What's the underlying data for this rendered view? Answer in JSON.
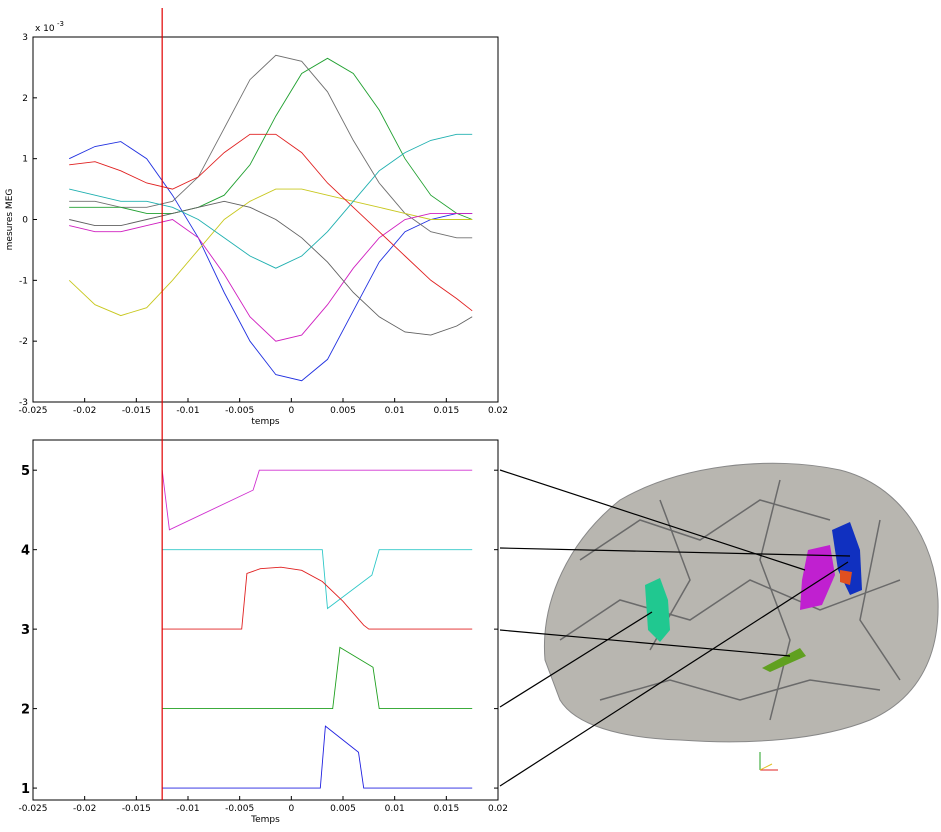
{
  "chart_data": [
    {
      "type": "line",
      "ylabel": "mesures MEG",
      "xlabel": "temps",
      "y_multiplier": "x 10",
      "y_multiplier_exp": "-3",
      "xlim": [
        -0.025,
        0.02
      ],
      "xticks": [
        -0.025,
        -0.02,
        -0.015,
        -0.01,
        -0.005,
        0,
        0.005,
        0.01,
        0.015,
        0.02
      ],
      "ylim": [
        -3,
        3
      ],
      "yticks": [
        -3,
        -2,
        -1,
        0,
        1,
        2,
        3
      ],
      "cursor_x": -0.0125,
      "x": [
        -0.0215,
        -0.019,
        -0.0165,
        -0.014,
        -0.0115,
        -0.009,
        -0.0065,
        -0.004,
        -0.0015,
        0.001,
        0.0035,
        0.006,
        0.0085,
        0.011,
        0.0135,
        0.016,
        0.0175
      ],
      "series": [
        {
          "color": "#2030e0",
          "values": [
            1.0,
            1.2,
            1.28,
            1.0,
            0.4,
            -0.3,
            -1.2,
            -2.0,
            -2.55,
            -2.65,
            -2.3,
            -1.5,
            -0.7,
            -0.2,
            0.0,
            0.1,
            0.1
          ]
        },
        {
          "color": "#707070",
          "values": [
            0.3,
            0.3,
            0.2,
            0.2,
            0.3,
            0.7,
            1.5,
            2.3,
            2.7,
            2.6,
            2.1,
            1.3,
            0.6,
            0.1,
            -0.2,
            -0.3,
            -0.3
          ]
        },
        {
          "color": "#20a030",
          "values": [
            0.2,
            0.2,
            0.2,
            0.1,
            0.1,
            0.2,
            0.4,
            0.9,
            1.7,
            2.4,
            2.65,
            2.4,
            1.8,
            1.0,
            0.4,
            0.1,
            0.0
          ]
        },
        {
          "color": "#c8c820",
          "values": [
            -1.0,
            -1.4,
            -1.58,
            -1.45,
            -1.0,
            -0.5,
            0.0,
            0.3,
            0.5,
            0.5,
            0.4,
            0.3,
            0.2,
            0.1,
            0.0,
            0.0,
            0.0
          ]
        },
        {
          "color": "#d020c0",
          "values": [
            -0.1,
            -0.2,
            -0.2,
            -0.1,
            0.0,
            -0.3,
            -0.9,
            -1.6,
            -2.0,
            -1.9,
            -1.4,
            -0.8,
            -0.3,
            0.0,
            0.1,
            0.1,
            0.1
          ]
        },
        {
          "color": "#e02020",
          "values": [
            0.9,
            0.95,
            0.8,
            0.6,
            0.5,
            0.7,
            1.1,
            1.4,
            1.4,
            1.1,
            0.6,
            0.2,
            -0.2,
            -0.6,
            -1.0,
            -1.3,
            -1.5
          ]
        },
        {
          "color": "#606060",
          "values": [
            0.0,
            -0.1,
            -0.1,
            0.0,
            0.1,
            0.2,
            0.3,
            0.2,
            0.0,
            -0.3,
            -0.7,
            -1.2,
            -1.6,
            -1.85,
            -1.9,
            -1.75,
            -1.6
          ]
        },
        {
          "color": "#20b0b0",
          "values": [
            0.5,
            0.4,
            0.3,
            0.3,
            0.2,
            0.0,
            -0.3,
            -0.6,
            -0.8,
            -0.6,
            -0.2,
            0.3,
            0.8,
            1.1,
            1.3,
            1.4,
            1.4
          ]
        }
      ]
    },
    {
      "type": "line",
      "xlabel": "Temps",
      "xlim": [
        -0.025,
        0.02
      ],
      "xticks": [
        -0.025,
        -0.02,
        -0.015,
        -0.01,
        -0.005,
        0,
        0.005,
        0.01,
        0.015,
        0.02
      ],
      "ylim": [
        0.85,
        5.38
      ],
      "yticks": [
        1,
        2,
        3,
        4,
        5
      ],
      "series": [
        {
          "color": "#d030d0",
          "x": [
            -0.0125,
            -0.0118,
            -0.0037,
            -0.0031,
            0.0175
          ],
          "values": [
            5,
            4.25,
            4.75,
            5,
            5
          ]
        },
        {
          "color": "#30c8c8",
          "x": [
            -0.0125,
            0.003,
            0.0035,
            0.0078,
            0.0085,
            0.0175
          ],
          "values": [
            4,
            4,
            3.26,
            3.68,
            4,
            4
          ]
        },
        {
          "color": "#e02020",
          "x": [
            -0.0125,
            -0.0048,
            -0.0043,
            -0.003,
            -0.001,
            0.001,
            0.003,
            0.005,
            0.007,
            0.0075,
            0.0175
          ],
          "values": [
            3,
            3,
            3.7,
            3.76,
            3.78,
            3.74,
            3.6,
            3.35,
            3.05,
            3,
            3
          ]
        },
        {
          "color": "#20a020",
          "x": [
            -0.0125,
            0.004,
            0.0047,
            0.0079,
            0.0085,
            0.0175
          ],
          "values": [
            2,
            2,
            2.77,
            2.52,
            2,
            2
          ]
        },
        {
          "color": "#2020e0",
          "x": [
            -0.0125,
            0.0028,
            0.0033,
            0.0065,
            0.007,
            0.0175
          ],
          "values": [
            1,
            1,
            1.78,
            1.45,
            1,
            1
          ]
        }
      ]
    }
  ]
}
